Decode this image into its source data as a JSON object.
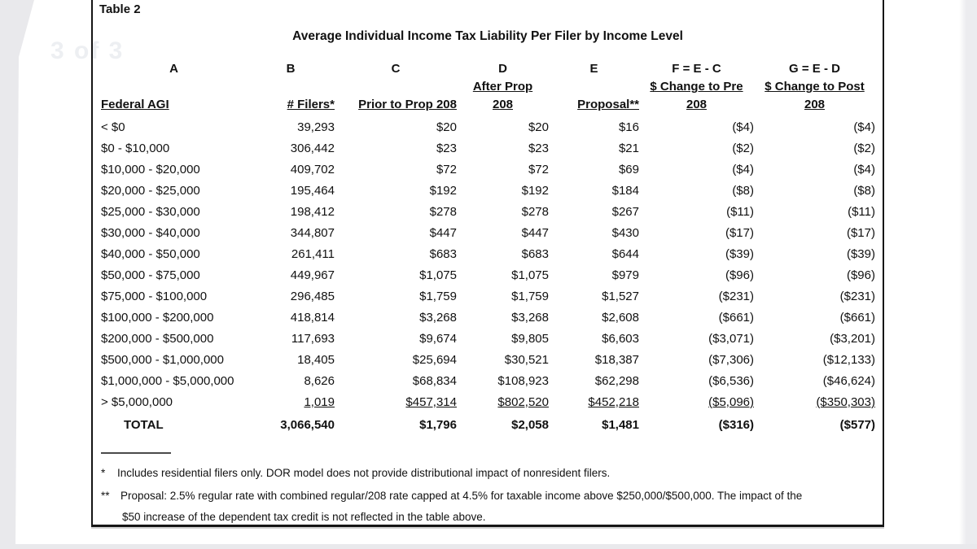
{
  "page": {
    "watermark": "3 of 3"
  },
  "table": {
    "label": "Table 2",
    "title": "Average Individual Income Tax Liability Per Filer by Income Level",
    "column_letters": [
      "A",
      "B",
      "C",
      "D",
      "E",
      "F = E - C",
      "G = E - D"
    ],
    "headers": [
      {
        "line1": "",
        "line2": "Federal AGI"
      },
      {
        "line1": "",
        "line2": "# Filers*"
      },
      {
        "line1": "",
        "line2": "Prior to Prop 208"
      },
      {
        "line1": "After Prop",
        "line2": "208"
      },
      {
        "line1": "",
        "line2": "Proposal**"
      },
      {
        "line1": "$ Change to Pre",
        "line2": "208"
      },
      {
        "line1": "$ Change to Post",
        "line2": "208"
      }
    ],
    "rows": [
      [
        "< $0",
        "39,293",
        "$20",
        "$20",
        "$16",
        "($4)",
        "($4)"
      ],
      [
        "$0 - $10,000",
        "306,442",
        "$23",
        "$23",
        "$21",
        "($2)",
        "($2)"
      ],
      [
        "$10,000 - $20,000",
        "409,702",
        "$72",
        "$72",
        "$69",
        "($4)",
        "($4)"
      ],
      [
        "$20,000 - $25,000",
        "195,464",
        "$192",
        "$192",
        "$184",
        "($8)",
        "($8)"
      ],
      [
        "$25,000 - $30,000",
        "198,412",
        "$278",
        "$278",
        "$267",
        "($11)",
        "($11)"
      ],
      [
        "$30,000 - $40,000",
        "344,807",
        "$447",
        "$447",
        "$430",
        "($17)",
        "($17)"
      ],
      [
        "$40,000 - $50,000",
        "261,411",
        "$683",
        "$683",
        "$644",
        "($39)",
        "($39)"
      ],
      [
        "$50,000 - $75,000",
        "449,967",
        "$1,075",
        "$1,075",
        "$979",
        "($96)",
        "($96)"
      ],
      [
        "$75,000 - $100,000",
        "296,485",
        "$1,759",
        "$1,759",
        "$1,527",
        "($231)",
        "($231)"
      ],
      [
        "$100,000 - $200,000",
        "418,814",
        "$3,268",
        "$3,268",
        "$2,608",
        "($661)",
        "($661)"
      ],
      [
        "$200,000 - $500,000",
        "117,693",
        "$9,674",
        "$9,805",
        "$6,603",
        "($3,071)",
        "($3,201)"
      ],
      [
        "$500,000 - $1,000,000",
        "18,405",
        "$25,694",
        "$30,521",
        "$18,387",
        "($7,306)",
        "($12,133)"
      ],
      [
        "$1,000,000 - $5,000,000",
        "8,626",
        "$68,834",
        "$108,923",
        "$62,298",
        "($6,536)",
        "($46,624)"
      ],
      [
        "> $5,000,000",
        "1,019",
        "$457,314",
        "$802,520",
        "$452,218",
        "($5,096)",
        "($350,303)"
      ]
    ],
    "total_row": [
      "TOTAL",
      "3,066,540",
      "$1,796",
      "$2,058",
      "$1,481",
      "($316)",
      "($577)"
    ],
    "footnotes": [
      {
        "marker": "*",
        "lines": [
          "Includes residential filers only.  DOR model does not provide distributional impact of nonresident filers."
        ]
      },
      {
        "marker": "**",
        "lines": [
          "Proposal:  2.5% regular rate with combined regular/208 rate capped at 4.5% for taxable income above $250,000/$500,000.  The impact of the",
          "$50 increase of the dependent tax credit is not reflected in the table above."
        ]
      }
    ]
  }
}
